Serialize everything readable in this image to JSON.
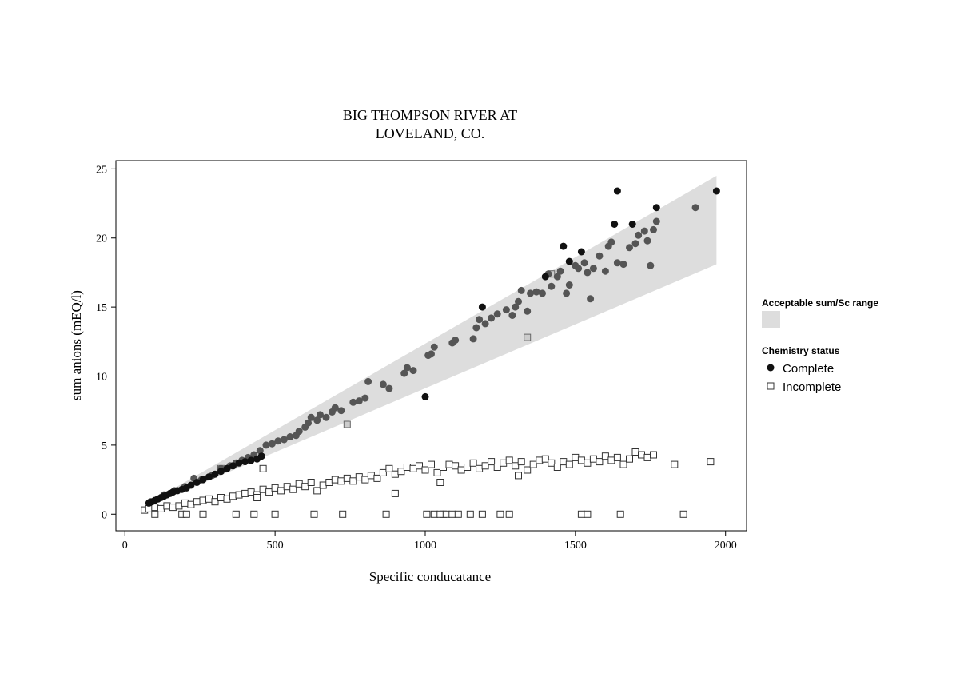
{
  "chart_data": {
    "type": "scatter",
    "title_lines": [
      "BIG THOMPSON RIVER AT",
      "LOVELAND, CO."
    ],
    "xlabel": "Specific conducatance",
    "ylabel": "sum anions (mEQ/l)",
    "xlim": [
      -30,
      2070
    ],
    "ylim": [
      -1.2,
      25.6
    ],
    "x_ticks": [
      0,
      500,
      1000,
      1500,
      2000
    ],
    "y_ticks": [
      0,
      5,
      10,
      15,
      20,
      25
    ],
    "grid": false,
    "legend_position": "right",
    "band": {
      "name": "Acceptable sum/Sc range",
      "color": "#dddddd",
      "upper": [
        [
          70,
          0.7
        ],
        [
          1970,
          24.5
        ]
      ],
      "lower": [
        [
          70,
          0.5
        ],
        [
          1970,
          18.1
        ]
      ]
    },
    "legend": {
      "band_heading": "Acceptable sum/Sc range",
      "status_heading": "Chemistry status",
      "items": [
        "Complete",
        "Incomplete"
      ]
    },
    "colors": {
      "complete_black": "#111111",
      "complete_gray": "#555555",
      "incomplete_fill": "#ffffff",
      "incomplete_stroke": "#333333",
      "incomplete_gray_fill": "#cccccc"
    },
    "series": [
      {
        "name": "Complete",
        "marker": "circle",
        "points_black": [
          [
            80,
            0.8
          ],
          [
            90,
            0.9
          ],
          [
            100,
            1.0
          ],
          [
            110,
            1.1
          ],
          [
            120,
            1.2
          ],
          [
            130,
            1.3
          ],
          [
            140,
            1.4
          ],
          [
            150,
            1.5
          ],
          [
            160,
            1.6
          ],
          [
            175,
            1.7
          ],
          [
            190,
            1.8
          ],
          [
            205,
            1.9
          ],
          [
            220,
            2.1
          ],
          [
            240,
            2.3
          ],
          [
            260,
            2.5
          ],
          [
            280,
            2.7
          ],
          [
            300,
            2.9
          ],
          [
            320,
            3.1
          ],
          [
            340,
            3.3
          ],
          [
            360,
            3.5
          ],
          [
            380,
            3.7
          ],
          [
            400,
            3.8
          ],
          [
            420,
            3.9
          ],
          [
            440,
            4.0
          ],
          [
            455,
            4.2
          ],
          [
            1000,
            8.5
          ],
          [
            1190,
            15.0
          ],
          [
            1400,
            17.2
          ],
          [
            1460,
            19.4
          ],
          [
            1480,
            18.3
          ],
          [
            1520,
            19.0
          ],
          [
            1630,
            21.0
          ],
          [
            1640,
            23.4
          ],
          [
            1690,
            21.0
          ],
          [
            1770,
            22.2
          ],
          [
            1970,
            23.4
          ]
        ],
        "points_gray": [
          [
            85,
            0.9
          ],
          [
            130,
            1.4
          ],
          [
            165,
            1.7
          ],
          [
            200,
            2.0
          ],
          [
            230,
            2.6
          ],
          [
            255,
            2.5
          ],
          [
            290,
            2.8
          ],
          [
            320,
            3.3
          ],
          [
            350,
            3.5
          ],
          [
            370,
            3.7
          ],
          [
            390,
            3.9
          ],
          [
            410,
            4.1
          ],
          [
            430,
            4.3
          ],
          [
            450,
            4.6
          ],
          [
            470,
            5.0
          ],
          [
            490,
            5.1
          ],
          [
            510,
            5.3
          ],
          [
            530,
            5.4
          ],
          [
            550,
            5.6
          ],
          [
            570,
            5.7
          ],
          [
            580,
            6.0
          ],
          [
            600,
            6.3
          ],
          [
            610,
            6.6
          ],
          [
            620,
            7.0
          ],
          [
            640,
            6.8
          ],
          [
            650,
            7.2
          ],
          [
            670,
            7.0
          ],
          [
            690,
            7.4
          ],
          [
            700,
            7.7
          ],
          [
            720,
            7.5
          ],
          [
            760,
            8.1
          ],
          [
            780,
            8.2
          ],
          [
            800,
            8.4
          ],
          [
            810,
            9.6
          ],
          [
            860,
            9.4
          ],
          [
            880,
            9.1
          ],
          [
            930,
            10.2
          ],
          [
            940,
            10.6
          ],
          [
            960,
            10.4
          ],
          [
            1010,
            11.5
          ],
          [
            1020,
            11.6
          ],
          [
            1030,
            12.1
          ],
          [
            1090,
            12.4
          ],
          [
            1100,
            12.6
          ],
          [
            1160,
            12.7
          ],
          [
            1170,
            13.5
          ],
          [
            1180,
            14.1
          ],
          [
            1200,
            13.8
          ],
          [
            1220,
            14.2
          ],
          [
            1240,
            14.5
          ],
          [
            1270,
            14.8
          ],
          [
            1290,
            14.4
          ],
          [
            1300,
            15.0
          ],
          [
            1310,
            15.4
          ],
          [
            1320,
            16.2
          ],
          [
            1340,
            14.7
          ],
          [
            1350,
            16.0
          ],
          [
            1370,
            16.1
          ],
          [
            1390,
            16.0
          ],
          [
            1410,
            17.4
          ],
          [
            1420,
            16.5
          ],
          [
            1440,
            17.2
          ],
          [
            1450,
            17.6
          ],
          [
            1470,
            16.0
          ],
          [
            1480,
            16.6
          ],
          [
            1500,
            18.0
          ],
          [
            1510,
            17.8
          ],
          [
            1530,
            18.2
          ],
          [
            1540,
            17.5
          ],
          [
            1550,
            15.6
          ],
          [
            1560,
            17.8
          ],
          [
            1580,
            18.7
          ],
          [
            1600,
            17.6
          ],
          [
            1610,
            19.4
          ],
          [
            1620,
            19.7
          ],
          [
            1640,
            18.2
          ],
          [
            1660,
            18.1
          ],
          [
            1680,
            19.3
          ],
          [
            1700,
            19.6
          ],
          [
            1710,
            20.2
          ],
          [
            1730,
            20.5
          ],
          [
            1740,
            19.8
          ],
          [
            1750,
            18.0
          ],
          [
            1760,
            20.6
          ],
          [
            1770,
            21.2
          ],
          [
            1900,
            22.2
          ]
        ]
      },
      {
        "name": "Incomplete",
        "marker": "square",
        "points": [
          [
            65,
            0.3
          ],
          [
            80,
            0.4
          ],
          [
            100,
            0.5
          ],
          [
            120,
            0.4
          ],
          [
            140,
            0.6
          ],
          [
            160,
            0.5
          ],
          [
            180,
            0.6
          ],
          [
            200,
            0.8
          ],
          [
            220,
            0.7
          ],
          [
            240,
            0.9
          ],
          [
            260,
            1.0
          ],
          [
            280,
            1.1
          ],
          [
            300,
            0.9
          ],
          [
            320,
            1.2
          ],
          [
            340,
            1.1
          ],
          [
            360,
            1.3
          ],
          [
            380,
            1.4
          ],
          [
            400,
            1.5
          ],
          [
            420,
            1.6
          ],
          [
            440,
            1.4
          ],
          [
            460,
            1.8
          ],
          [
            480,
            1.6
          ],
          [
            500,
            1.9
          ],
          [
            520,
            1.7
          ],
          [
            540,
            2.0
          ],
          [
            560,
            1.8
          ],
          [
            580,
            2.2
          ],
          [
            600,
            2.0
          ],
          [
            620,
            2.3
          ],
          [
            640,
            1.7
          ],
          [
            660,
            2.1
          ],
          [
            680,
            2.3
          ],
          [
            700,
            2.5
          ],
          [
            720,
            2.4
          ],
          [
            740,
            2.6
          ],
          [
            760,
            2.4
          ],
          [
            780,
            2.7
          ],
          [
            800,
            2.5
          ],
          [
            820,
            2.8
          ],
          [
            840,
            2.6
          ],
          [
            860,
            3.0
          ],
          [
            880,
            3.3
          ],
          [
            900,
            2.9
          ],
          [
            920,
            3.1
          ],
          [
            940,
            3.4
          ],
          [
            960,
            3.3
          ],
          [
            980,
            3.5
          ],
          [
            1000,
            3.2
          ],
          [
            1020,
            3.6
          ],
          [
            1040,
            3.0
          ],
          [
            1060,
            3.4
          ],
          [
            1080,
            3.6
          ],
          [
            1100,
            3.5
          ],
          [
            1120,
            3.2
          ],
          [
            1140,
            3.4
          ],
          [
            1160,
            3.7
          ],
          [
            1180,
            3.3
          ],
          [
            1200,
            3.5
          ],
          [
            1220,
            3.8
          ],
          [
            1240,
            3.4
          ],
          [
            1260,
            3.7
          ],
          [
            1280,
            3.9
          ],
          [
            1300,
            3.5
          ],
          [
            1320,
            3.8
          ],
          [
            1340,
            3.2
          ],
          [
            1360,
            3.6
          ],
          [
            1380,
            3.9
          ],
          [
            1400,
            4.0
          ],
          [
            1420,
            3.7
          ],
          [
            1440,
            3.4
          ],
          [
            1460,
            3.8
          ],
          [
            1480,
            3.6
          ],
          [
            1500,
            4.1
          ],
          [
            1520,
            3.9
          ],
          [
            1540,
            3.7
          ],
          [
            1560,
            4.0
          ],
          [
            1580,
            3.8
          ],
          [
            1600,
            4.2
          ],
          [
            1620,
            3.9
          ],
          [
            1640,
            4.1
          ],
          [
            1660,
            3.6
          ],
          [
            1680,
            4.0
          ],
          [
            1700,
            4.5
          ],
          [
            1720,
            4.3
          ],
          [
            1740,
            4.1
          ],
          [
            1760,
            4.3
          ],
          [
            1830,
            3.6
          ],
          [
            1950,
            3.8
          ],
          [
            460,
            3.3
          ],
          [
            440,
            1.2
          ],
          [
            900,
            1.5
          ],
          [
            1050,
            2.3
          ],
          [
            1310,
            2.8
          ],
          [
            100,
            0
          ],
          [
            190,
            0
          ],
          [
            205,
            0
          ],
          [
            260,
            0
          ],
          [
            370,
            0
          ],
          [
            430,
            0
          ],
          [
            500,
            0
          ],
          [
            630,
            0
          ],
          [
            725,
            0
          ],
          [
            870,
            0
          ],
          [
            1005,
            0
          ],
          [
            1030,
            0
          ],
          [
            1050,
            0
          ],
          [
            1060,
            0
          ],
          [
            1070,
            0
          ],
          [
            1090,
            0
          ],
          [
            1110,
            0
          ],
          [
            1150,
            0
          ],
          [
            1190,
            0
          ],
          [
            1250,
            0
          ],
          [
            1280,
            0
          ],
          [
            1520,
            0
          ],
          [
            1540,
            0
          ],
          [
            1650,
            0
          ],
          [
            1860,
            0
          ]
        ],
        "points_gray": [
          [
            740,
            6.5
          ],
          [
            1340,
            12.8
          ],
          [
            320,
            3.3
          ],
          [
            1420,
            17.4
          ]
        ]
      }
    ]
  }
}
